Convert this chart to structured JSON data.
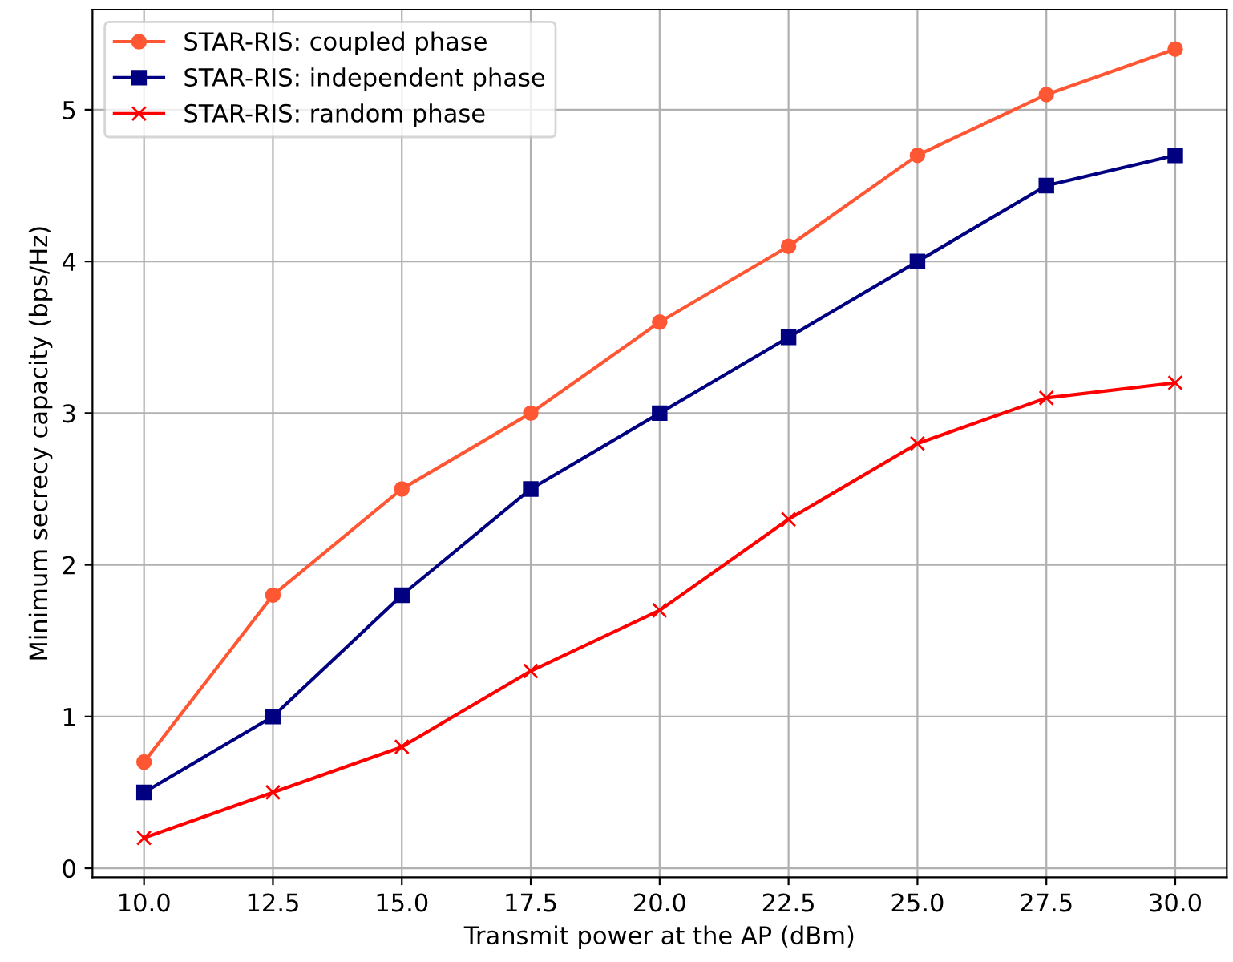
{
  "chart_data": {
    "type": "line",
    "xlabel": "Transmit power at the AP (dBm)",
    "ylabel": "Minimum secrecy capacity (bps/Hz)",
    "x": [
      10,
      12.5,
      15,
      17.5,
      20,
      22.5,
      25,
      27.5,
      30
    ],
    "series": [
      {
        "name": "STAR-RIS: coupled phase",
        "color": "#ff5733",
        "marker": "circle",
        "values": [
          0.7,
          1.8,
          2.5,
          3.0,
          3.6,
          4.1,
          4.7,
          5.1,
          5.4
        ]
      },
      {
        "name": "STAR-RIS: independent phase",
        "color": "#000080",
        "marker": "square",
        "values": [
          0.5,
          1.0,
          1.8,
          2.5,
          3.0,
          3.5,
          4.0,
          4.5,
          4.7
        ]
      },
      {
        "name": "STAR-RIS: random phase",
        "color": "#ff0000",
        "marker": "cross",
        "values": [
          0.2,
          0.5,
          0.8,
          1.3,
          1.7,
          2.3,
          2.8,
          3.1,
          3.2
        ]
      }
    ],
    "xlim": [
      9,
      31
    ],
    "xticks": [
      {
        "value": 10,
        "label": "10.0"
      },
      {
        "value": 12.5,
        "label": "12.5"
      },
      {
        "value": 15,
        "label": "15.0"
      },
      {
        "value": 17.5,
        "label": "17.5"
      },
      {
        "value": 20,
        "label": "20.0"
      },
      {
        "value": 22.5,
        "label": "22.5"
      },
      {
        "value": 25,
        "label": "25.0"
      },
      {
        "value": 27.5,
        "label": "27.5"
      },
      {
        "value": 30,
        "label": "30.0"
      }
    ],
    "ylim": [
      -0.06,
      5.66
    ],
    "yticks": [
      0,
      1,
      2,
      3,
      4,
      5
    ],
    "grid": true,
    "legend": "top left",
    "line_style": "solid"
  }
}
